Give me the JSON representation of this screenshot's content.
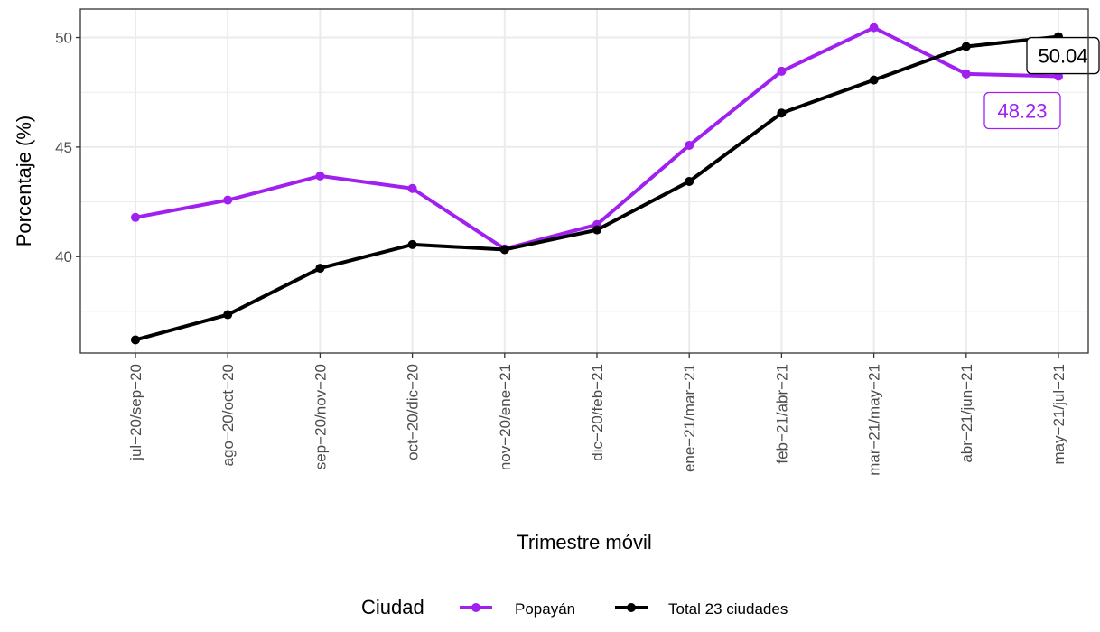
{
  "chart_data": {
    "type": "line",
    "xlabel": "Trimestre móvil",
    "ylabel": "Porcentaje (%)",
    "categories": [
      "jul−20/sep−20",
      "ago−20/oct−20",
      "sep−20/nov−20",
      "oct−20/dic−20",
      "nov−20/ene−21",
      "dic−20/feb−21",
      "ene−21/mar−21",
      "feb−21/abr−21",
      "mar−21/may−21",
      "abr−21/jun−21",
      "may−21/jul−21"
    ],
    "yticks": [
      40,
      45,
      50
    ],
    "ylim": [
      35.6,
      51.3
    ],
    "grid": true,
    "legend": {
      "title": "Ciudad",
      "position": "bottom"
    },
    "series": [
      {
        "name": "Popayán",
        "color": "#a020f0",
        "values": [
          41.79,
          42.58,
          43.68,
          43.11,
          40.35,
          41.46,
          45.08,
          48.46,
          50.45,
          48.34,
          48.23
        ],
        "end_label": "48.23"
      },
      {
        "name": "Total 23 ciudades",
        "color": "#000000",
        "values": [
          36.2,
          37.35,
          39.47,
          40.55,
          40.32,
          41.22,
          43.43,
          46.55,
          48.06,
          49.59,
          50.04
        ],
        "end_label": "50.04"
      }
    ]
  }
}
